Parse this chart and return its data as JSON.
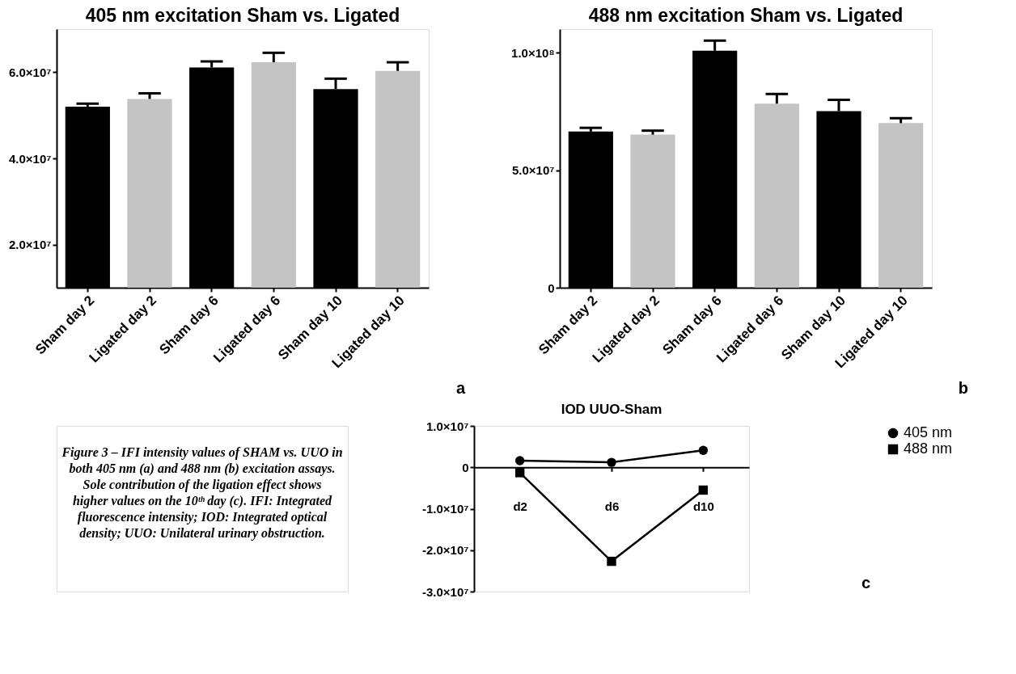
{
  "chart_data": [
    {
      "type": "bar",
      "title": "405 nm excitation Sham vs. Ligated",
      "categories": [
        "Sham day 2",
        "Ligated day 2",
        "Sham day 6",
        "Ligated day 6",
        "Sham day 10",
        "Ligated day 10"
      ],
      "values": [
        52000000.0,
        53800000.0,
        61100000.0,
        62300000.0,
        56100000.0,
        60300000.0
      ],
      "colors": [
        "#000000",
        "#c4c4c4",
        "#000000",
        "#c4c4c4",
        "#000000",
        "#c4c4c4"
      ],
      "errors": [
        [
          52000000.0,
          52700000.0
        ],
        [
          53800000.0,
          55100000.0
        ],
        [
          61100000.0,
          62500000.0
        ],
        [
          62300000.0,
          64500000.0
        ],
        [
          56100000.0,
          58500000.0
        ],
        [
          60300000.0,
          62300000.0
        ]
      ],
      "ylim": [
        10000000.0,
        70000000.0
      ],
      "yticks": [
        {
          "value": 20000000.0,
          "label": "2.0×10⁷"
        },
        {
          "value": 40000000.0,
          "label": "4.0×10⁷"
        },
        {
          "value": 60000000.0,
          "label": "6.0×10⁷"
        }
      ],
      "grid": false,
      "annotations": [
        "a"
      ]
    },
    {
      "type": "bar",
      "title": "488 nm excitation Sham vs. Ligated",
      "categories": [
        "Sham day 2",
        "Ligated day 2",
        "Sham day 6",
        "Ligated day 6",
        "Sham day 10",
        "Ligated day 10"
      ],
      "values": [
        66400000.0,
        65100000.0,
        100800000.0,
        78300000.0,
        75100000.0,
        70000000.0
      ],
      "colors": [
        "#000000",
        "#c4c4c4",
        "#000000",
        "#c4c4c4",
        "#000000",
        "#c4c4c4"
      ],
      "errors": [
        [
          66400000.0,
          68000000.0
        ],
        [
          65100000.0,
          66800000.0
        ],
        [
          100800000.0,
          105100000.0
        ],
        [
          78300000.0,
          82400000.0
        ],
        [
          75100000.0,
          79900000.0
        ],
        [
          70000000.0,
          72100000.0
        ]
      ],
      "ylim": [
        0,
        110000000.0
      ],
      "yticks": [
        0,
        {
          "value": 50000000.0,
          "label": "5.0×10⁷"
        },
        {
          "value": 100000000.0,
          "label": "1.0×10⁸"
        }
      ],
      "grid": false,
      "annotations": [
        "b"
      ]
    },
    {
      "type": "line",
      "title": "IOD UUO-Sham",
      "categories": [
        "d2",
        "d6",
        "d10"
      ],
      "series": [
        {
          "name": "405 nm",
          "color": "#000000",
          "marker": "circle",
          "values": [
            1600000.0,
            1200000.0,
            4100000.0
          ]
        },
        {
          "name": "488 nm",
          "color": "#000000",
          "marker": "square",
          "values": [
            -1300000.0,
            -22700000.0,
            -5500000.0
          ]
        }
      ],
      "ylim": [
        -30000000.0,
        10000000.0
      ],
      "yticks": [
        {
          "value": -30000000.0,
          "label": "-3.0×10⁷"
        },
        {
          "value": -20000000.0,
          "label": "-2.0×10⁷"
        },
        {
          "value": -10000000.0,
          "label": "-1.0×10⁷"
        },
        0,
        {
          "value": 10000000.0,
          "label": "1.0×10⁷"
        }
      ],
      "grid": false,
      "legend": "right",
      "line_style": "solid",
      "annotations": [
        "c",
        "Figure 3 – IFI intensity values of SHAM vs. UUO in both 405 nm (a) and 488 nm (b) excitation assays. Sole contribution of the ligation effect shows higher values on the 10ᵗʰ day (c). IFI: Integrated fluorescence intensity; IOD: Integrated optical density; UUO: Unilateral urinary obstruction."
      ]
    }
  ]
}
